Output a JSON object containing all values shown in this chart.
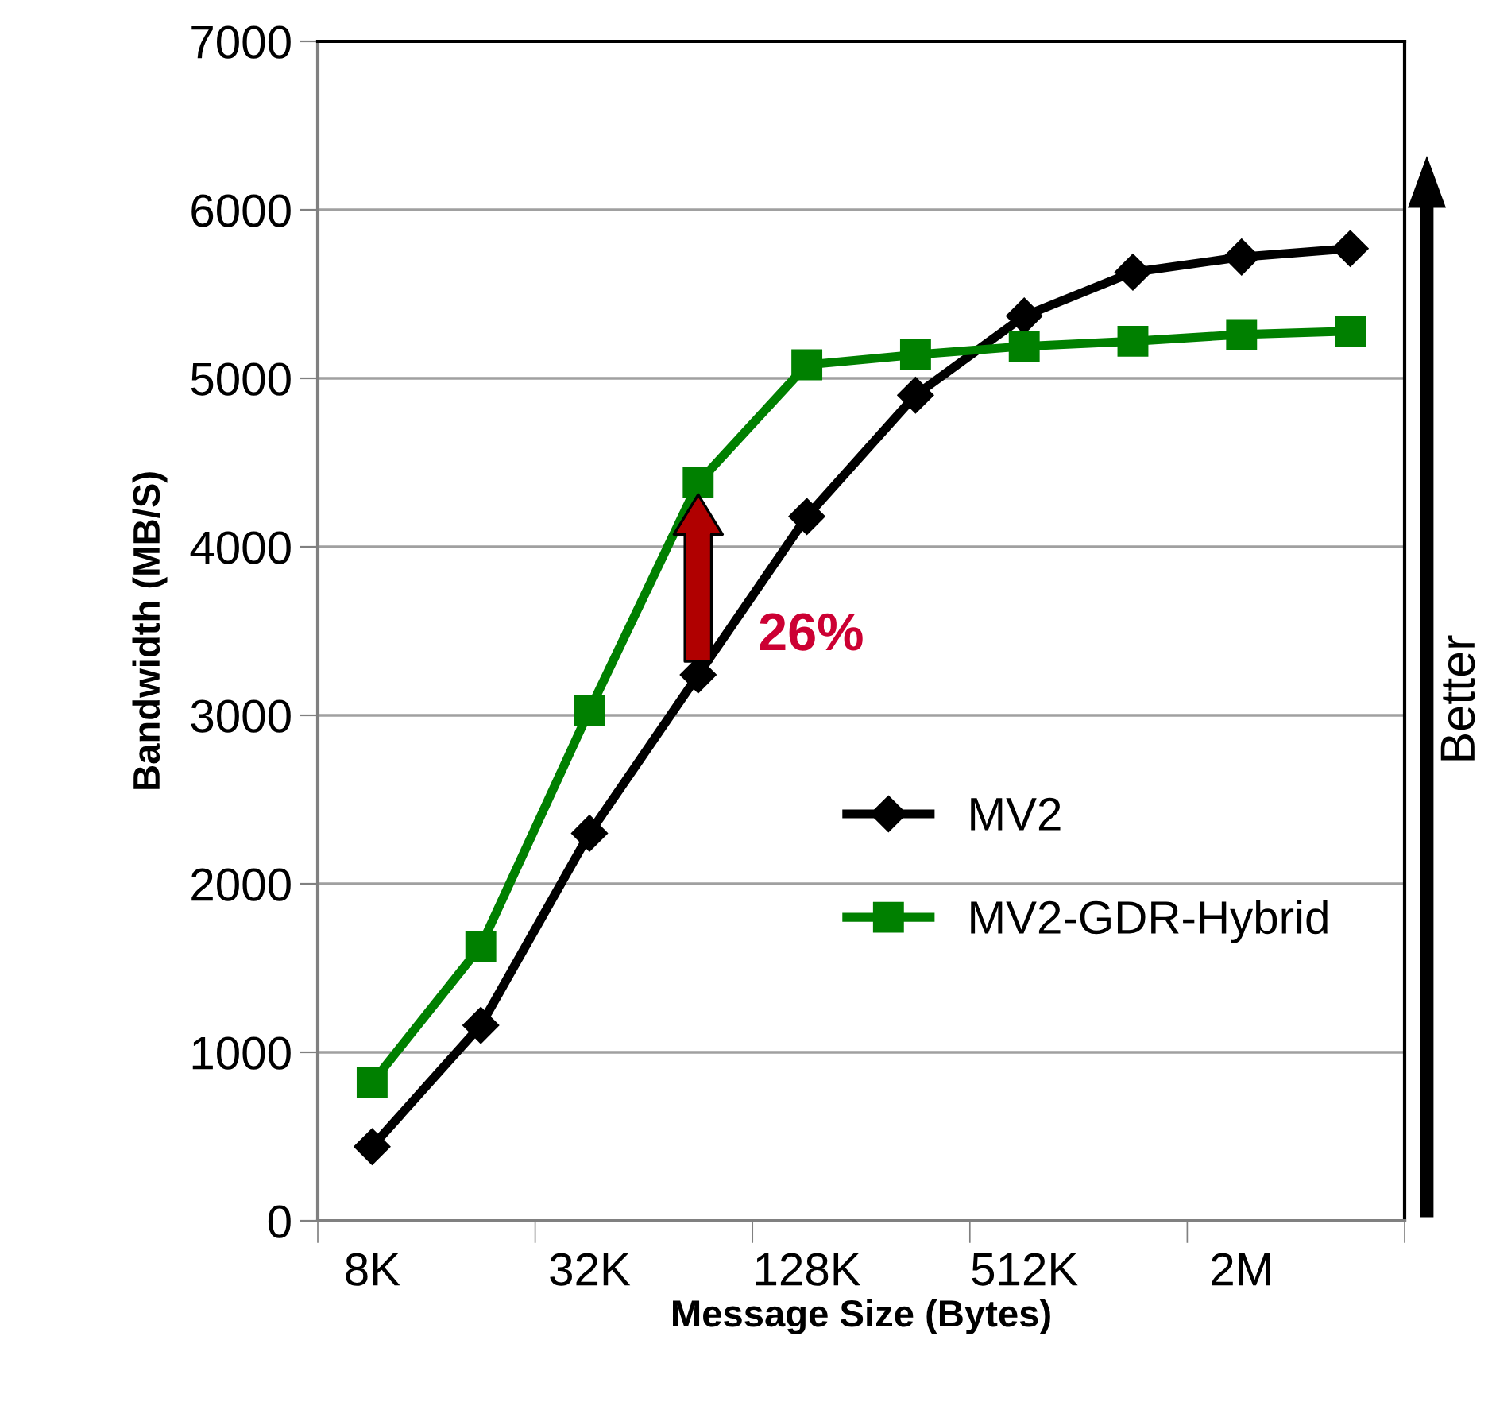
{
  "chart_data": {
    "type": "line",
    "xlabel": "Message Size (Bytes)",
    "ylabel": "Bandwidth (MB/S)",
    "categories": [
      "8K",
      null,
      "32K",
      null,
      "128K",
      null,
      "512K",
      null,
      "2M",
      null
    ],
    "series": [
      {
        "name": "MV2",
        "color": "#000000",
        "marker": "diamond",
        "values": [
          440,
          1160,
          2300,
          3240,
          4180,
          4900,
          5370,
          5630,
          5720,
          5770
        ]
      },
      {
        "name": "MV2-GDR-Hybrid",
        "color": "#008000",
        "marker": "square",
        "values": [
          820,
          1630,
          3030,
          4380,
          5080,
          5140,
          5190,
          5220,
          5260,
          5280
        ]
      }
    ],
    "ylim": [
      0,
      7000
    ],
    "yticks": [
      0,
      1000,
      2000,
      3000,
      4000,
      5000,
      6000,
      7000
    ],
    "grid": "y",
    "legend": "lower right",
    "line_style": "solid",
    "annotations": [
      "26%",
      "Better"
    ]
  }
}
